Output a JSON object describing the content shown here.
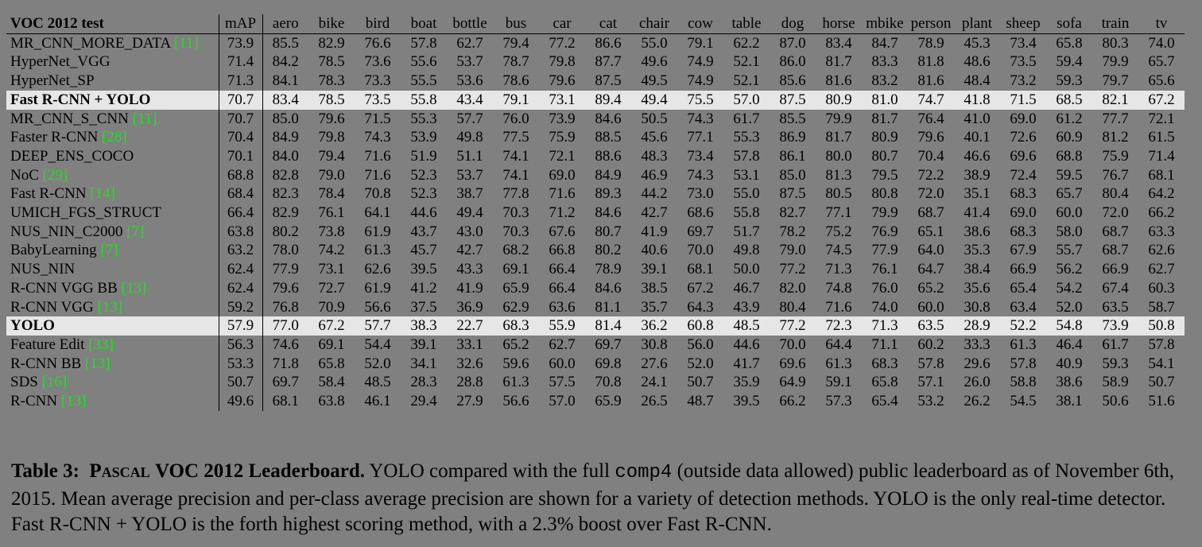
{
  "table": {
    "columns": [
      "VOC 2012 test",
      "mAP",
      "aero",
      "bike",
      "bird",
      "boat",
      "bottle",
      "bus",
      "car",
      "cat",
      "chair",
      "cow",
      "table",
      "dog",
      "horse",
      "mbike",
      "person",
      "plant",
      "sheep",
      "sofa",
      "train",
      "tv"
    ],
    "rows": [
      {
        "method": "MR_CNN_MORE_DATA",
        "ref": "[11]",
        "values": [
          "73.9",
          "85.5",
          "82.9",
          "76.6",
          "57.8",
          "62.7",
          "79.4",
          "77.2",
          "86.6",
          "55.0",
          "79.1",
          "62.2",
          "87.0",
          "83.4",
          "84.7",
          "78.9",
          "45.3",
          "73.4",
          "65.8",
          "80.3",
          "74.0"
        ],
        "bold": [
          0,
          1,
          2,
          3,
          4,
          5,
          6,
          9,
          10,
          11,
          13,
          14
        ]
      },
      {
        "method": "HyperNet_VGG",
        "values": [
          "71.4",
          "84.2",
          "78.5",
          "73.6",
          "55.6",
          "53.7",
          "78.7",
          "79.8",
          "87.7",
          "49.6",
          "74.9",
          "52.1",
          "86.0",
          "81.7",
          "83.3",
          "81.8",
          "48.6",
          "73.5",
          "59.4",
          "79.9",
          "65.7"
        ],
        "bold": [
          7,
          15,
          16,
          17
        ]
      },
      {
        "method": "HyperNet_SP",
        "values": [
          "71.3",
          "84.1",
          "78.3",
          "73.3",
          "55.5",
          "53.6",
          "78.6",
          "79.6",
          "87.5",
          "49.5",
          "74.9",
          "52.1",
          "85.6",
          "81.6",
          "83.2",
          "81.6",
          "48.4",
          "73.2",
          "59.3",
          "79.7",
          "65.6"
        ]
      },
      {
        "method": "Fast R-CNN + YOLO",
        "highlight": true,
        "values": [
          "70.7",
          "83.4",
          "78.5",
          "73.5",
          "55.8",
          "43.4",
          "79.1",
          "73.1",
          "89.4",
          "49.4",
          "75.5",
          "57.0",
          "87.5",
          "80.9",
          "81.0",
          "74.7",
          "41.8",
          "71.5",
          "68.5",
          "82.1",
          "67.2"
        ],
        "bold": [
          8,
          12,
          19
        ]
      },
      {
        "method": "MR_CNN_S_CNN",
        "ref": "[11]",
        "values": [
          "70.7",
          "85.0",
          "79.6",
          "71.5",
          "55.3",
          "57.7",
          "76.0",
          "73.9",
          "84.6",
          "50.5",
          "74.3",
          "61.7",
          "85.5",
          "79.9",
          "81.7",
          "76.4",
          "41.0",
          "69.0",
          "61.2",
          "77.7",
          "72.1"
        ]
      },
      {
        "method": "Faster R-CNN",
        "ref": "[28]",
        "values": [
          "70.4",
          "84.9",
          "79.8",
          "74.3",
          "53.9",
          "49.8",
          "77.5",
          "75.9",
          "88.5",
          "45.6",
          "77.1",
          "55.3",
          "86.9",
          "81.7",
          "80.9",
          "79.6",
          "40.1",
          "72.6",
          "60.9",
          "81.2",
          "61.5"
        ]
      },
      {
        "method": "DEEP_ENS_COCO",
        "values": [
          "70.1",
          "84.0",
          "79.4",
          "71.6",
          "51.9",
          "51.1",
          "74.1",
          "72.1",
          "88.6",
          "48.3",
          "73.4",
          "57.8",
          "86.1",
          "80.0",
          "80.7",
          "70.4",
          "46.6",
          "69.6",
          "68.8",
          "75.9",
          "71.4"
        ],
        "bold": [
          18
        ]
      },
      {
        "method": "NoC",
        "ref": "[29]",
        "values": [
          "68.8",
          "82.8",
          "79.0",
          "71.6",
          "52.3",
          "53.7",
          "74.1",
          "69.0",
          "84.9",
          "46.9",
          "74.3",
          "53.1",
          "85.0",
          "81.3",
          "79.5",
          "72.2",
          "38.9",
          "72.4",
          "59.5",
          "76.7",
          "68.1"
        ]
      },
      {
        "method": "Fast R-CNN",
        "ref": "[14]",
        "values": [
          "68.4",
          "82.3",
          "78.4",
          "70.8",
          "52.3",
          "38.7",
          "77.8",
          "71.6",
          "89.3",
          "44.2",
          "73.0",
          "55.0",
          "87.5",
          "80.5",
          "80.8",
          "72.0",
          "35.1",
          "68.3",
          "65.7",
          "80.4",
          "64.2"
        ],
        "bold": [
          12
        ]
      },
      {
        "method": "UMICH_FGS_STRUCT",
        "values": [
          "66.4",
          "82.9",
          "76.1",
          "64.1",
          "44.6",
          "49.4",
          "70.3",
          "71.2",
          "84.6",
          "42.7",
          "68.6",
          "55.8",
          "82.7",
          "77.1",
          "79.9",
          "68.7",
          "41.4",
          "69.0",
          "60.0",
          "72.0",
          "66.2"
        ]
      },
      {
        "method": "NUS_NIN_C2000",
        "ref": "[7]",
        "values": [
          "63.8",
          "80.2",
          "73.8",
          "61.9",
          "43.7",
          "43.0",
          "70.3",
          "67.6",
          "80.7",
          "41.9",
          "69.7",
          "51.7",
          "78.2",
          "75.2",
          "76.9",
          "65.1",
          "38.6",
          "68.3",
          "58.0",
          "68.7",
          "63.3"
        ]
      },
      {
        "method": "BabyLearning",
        "ref": "[7]",
        "values": [
          "63.2",
          "78.0",
          "74.2",
          "61.3",
          "45.7",
          "42.7",
          "68.2",
          "66.8",
          "80.2",
          "40.6",
          "70.0",
          "49.8",
          "79.0",
          "74.5",
          "77.9",
          "64.0",
          "35.3",
          "67.9",
          "55.7",
          "68.7",
          "62.6"
        ]
      },
      {
        "method": "NUS_NIN",
        "values": [
          "62.4",
          "77.9",
          "73.1",
          "62.6",
          "39.5",
          "43.3",
          "69.1",
          "66.4",
          "78.9",
          "39.1",
          "68.1",
          "50.0",
          "77.2",
          "71.3",
          "76.1",
          "64.7",
          "38.4",
          "66.9",
          "56.2",
          "66.9",
          "62.7"
        ]
      },
      {
        "method": "R-CNN VGG BB",
        "ref": "[13]",
        "values": [
          "62.4",
          "79.6",
          "72.7",
          "61.9",
          "41.2",
          "41.9",
          "65.9",
          "66.4",
          "84.6",
          "38.5",
          "67.2",
          "46.7",
          "82.0",
          "74.8",
          "76.0",
          "65.2",
          "35.6",
          "65.4",
          "54.2",
          "67.4",
          "60.3"
        ]
      },
      {
        "method": "R-CNN VGG",
        "ref": "[13]",
        "values": [
          "59.2",
          "76.8",
          "70.9",
          "56.6",
          "37.5",
          "36.9",
          "62.9",
          "63.6",
          "81.1",
          "35.7",
          "64.3",
          "43.9",
          "80.4",
          "71.6",
          "74.0",
          "60.0",
          "30.8",
          "63.4",
          "52.0",
          "63.5",
          "58.7"
        ]
      },
      {
        "method": "YOLO",
        "highlight": true,
        "values": [
          "57.9",
          "77.0",
          "67.2",
          "57.7",
          "38.3",
          "22.7",
          "68.3",
          "55.9",
          "81.4",
          "36.2",
          "60.8",
          "48.5",
          "77.2",
          "72.3",
          "71.3",
          "63.5",
          "28.9",
          "52.2",
          "54.8",
          "73.9",
          "50.8"
        ]
      },
      {
        "method": "Feature Edit",
        "ref": "[33]",
        "values": [
          "56.3",
          "74.6",
          "69.1",
          "54.4",
          "39.1",
          "33.1",
          "65.2",
          "62.7",
          "69.7",
          "30.8",
          "56.0",
          "44.6",
          "70.0",
          "64.4",
          "71.1",
          "60.2",
          "33.3",
          "61.3",
          "46.4",
          "61.7",
          "57.8"
        ]
      },
      {
        "method": "R-CNN BB",
        "ref": "[13]",
        "values": [
          "53.3",
          "71.8",
          "65.8",
          "52.0",
          "34.1",
          "32.6",
          "59.6",
          "60.0",
          "69.8",
          "27.6",
          "52.0",
          "41.7",
          "69.6",
          "61.3",
          "68.3",
          "57.8",
          "29.6",
          "57.8",
          "40.9",
          "59.3",
          "54.1"
        ]
      },
      {
        "method": "SDS",
        "ref": "[16]",
        "values": [
          "50.7",
          "69.7",
          "58.4",
          "48.5",
          "28.3",
          "28.8",
          "61.3",
          "57.5",
          "70.8",
          "24.1",
          "50.7",
          "35.9",
          "64.9",
          "59.1",
          "65.8",
          "57.1",
          "26.0",
          "58.8",
          "38.6",
          "58.9",
          "50.7"
        ]
      },
      {
        "method": "R-CNN",
        "ref": "[13]",
        "values": [
          "49.6",
          "68.1",
          "63.8",
          "46.1",
          "29.4",
          "27.9",
          "56.6",
          "57.0",
          "65.9",
          "26.5",
          "48.7",
          "39.5",
          "66.2",
          "57.3",
          "65.4",
          "53.2",
          "26.2",
          "54.5",
          "38.1",
          "50.6",
          "51.6"
        ]
      }
    ]
  },
  "caption": {
    "label": "Table 3:",
    "title_smallcaps": "Pascal",
    "title": "VOC 2012 Leaderboard.",
    "text_before": "YOLO compared with the full",
    "code": "comp4",
    "text_after": "(outside data allowed) public leaderboard as of November 6th, 2015. Mean average precision and per-class average precision are shown for a variety of detection methods. YOLO is the only real-time detector. Fast R-CNN + YOLO is the forth highest scoring method, with a 2.3% boost over Fast R-CNN."
  }
}
